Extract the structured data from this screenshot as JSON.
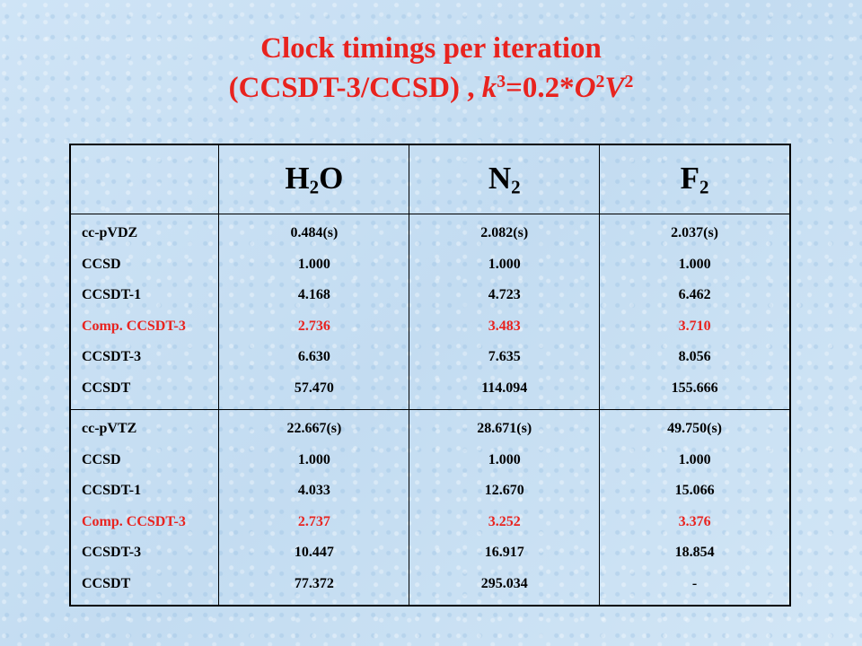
{
  "title": {
    "line1": "Clock timings per iteration",
    "line2_prefix": "(CCSDT-3/CCSD) , ",
    "k": "k",
    "k_sup": "3",
    "eq": "=0.2*",
    "O": "O",
    "O_sup": "2",
    "V": "V",
    "V_sup": "2"
  },
  "columns": [
    {
      "base": "H",
      "sub": "2",
      "rest": "O"
    },
    {
      "base": "N",
      "sub": "2",
      "rest": ""
    },
    {
      "base": "F",
      "sub": "2",
      "rest": ""
    }
  ],
  "blocks": [
    {
      "labels": [
        "cc-pVDZ",
        "CCSD",
        "CCSDT-1",
        "Comp. CCSDT-3",
        "CCSDT-3",
        "CCSDT"
      ],
      "values": [
        [
          "0.484(s)",
          "1.000",
          "4.168",
          "2.736",
          "6.630",
          "57.470"
        ],
        [
          "2.082(s)",
          "1.000",
          "4.723",
          "3.483",
          "7.635",
          "114.094"
        ],
        [
          "2.037(s)",
          "1.000",
          "6.462",
          "3.710",
          "8.056",
          "155.666"
        ]
      ]
    },
    {
      "labels": [
        "cc-pVTZ",
        "CCSD",
        "CCSDT-1",
        "Comp. CCSDT-3",
        "CCSDT-3",
        "CCSDT"
      ],
      "values": [
        [
          "22.667(s)",
          "1.000",
          "4.033",
          "2.737",
          "10.447",
          "77.372"
        ],
        [
          "28.671(s)",
          "1.000",
          "12.670",
          "3.252",
          "16.917",
          "295.034"
        ],
        [
          "49.750(s)",
          "1.000",
          "15.066",
          "3.376",
          "18.854",
          "-"
        ]
      ]
    }
  ],
  "colors": {
    "highlight": "#e8231f",
    "text": "#000000",
    "background": "#c9e0f3"
  }
}
